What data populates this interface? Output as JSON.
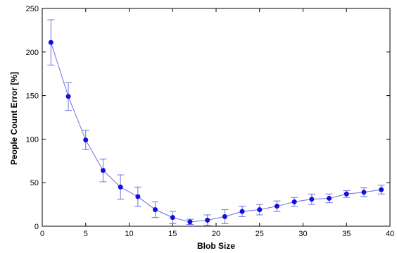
{
  "chart_data": {
    "type": "line",
    "title": "",
    "xlabel": "Blob Size",
    "ylabel": "People Count Error [%]",
    "xlim": [
      0,
      40
    ],
    "ylim": [
      0,
      250
    ],
    "xticks": [
      0,
      5,
      10,
      15,
      20,
      25,
      30,
      35,
      40
    ],
    "yticks": [
      0,
      50,
      100,
      150,
      200,
      250
    ],
    "grid": false,
    "series": [
      {
        "color": "#1010e0",
        "line_color": "#6f6fe0",
        "errorbar_color": "#6f6fe0",
        "points": [
          {
            "x": 1,
            "y": 211,
            "err": 26
          },
          {
            "x": 3,
            "y": 149,
            "err": 16
          },
          {
            "x": 5,
            "y": 99,
            "err": 11
          },
          {
            "x": 7,
            "y": 64,
            "err": 13
          },
          {
            "x": 9,
            "y": 45,
            "err": 14
          },
          {
            "x": 11,
            "y": 34,
            "err": 11
          },
          {
            "x": 13,
            "y": 19,
            "err": 9
          },
          {
            "x": 15,
            "y": 10,
            "err": 7
          },
          {
            "x": 17,
            "y": 5,
            "err": 3
          },
          {
            "x": 19,
            "y": 7,
            "err": 6
          },
          {
            "x": 21,
            "y": 11,
            "err": 8
          },
          {
            "x": 23,
            "y": 17,
            "err": 6
          },
          {
            "x": 25,
            "y": 19,
            "err": 6
          },
          {
            "x": 27,
            "y": 23,
            "err": 6
          },
          {
            "x": 29,
            "y": 28,
            "err": 5
          },
          {
            "x": 31,
            "y": 31,
            "err": 6
          },
          {
            "x": 33,
            "y": 32,
            "err": 5
          },
          {
            "x": 35,
            "y": 37,
            "err": 4
          },
          {
            "x": 37,
            "y": 39,
            "err": 5
          },
          {
            "x": 39,
            "y": 42,
            "err": 5
          }
        ]
      }
    ]
  }
}
